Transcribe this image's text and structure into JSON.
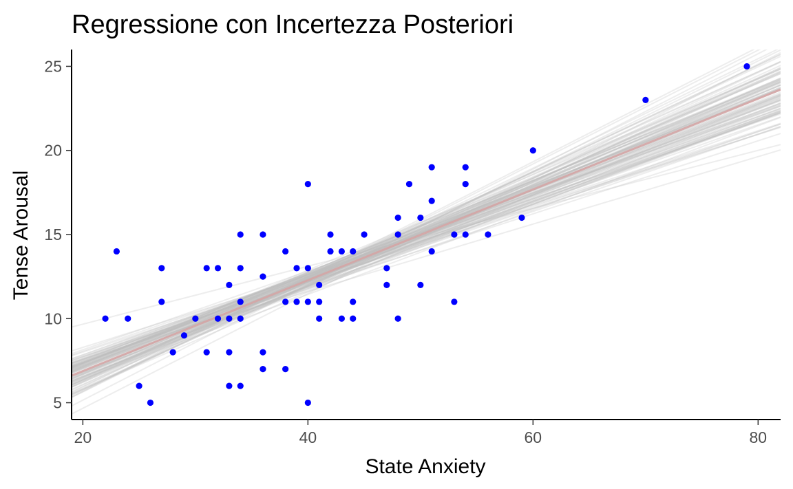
{
  "chart_data": {
    "type": "scatter",
    "title": "Regressione con Incertezza Posteriori",
    "xlabel": "State Anxiety",
    "ylabel": "Tense Arousal",
    "xlim": [
      19,
      82
    ],
    "ylim": [
      4,
      26
    ],
    "x_ticks": [
      20,
      40,
      60,
      80
    ],
    "y_ticks": [
      5,
      10,
      15,
      20,
      25
    ],
    "grid": false,
    "legend": "none",
    "colors": {
      "points": "#0000ff",
      "posterior_lines": "#bebebe",
      "mean_line": "#d4a5a5",
      "axis": "#000000",
      "tick_label": "#4d4d4d"
    },
    "mean_line": {
      "intercept": 1.48,
      "slope": 0.27
    },
    "posterior_draws": 100,
    "points": [
      {
        "x": 22,
        "y": 10
      },
      {
        "x": 23,
        "y": 14
      },
      {
        "x": 24,
        "y": 10
      },
      {
        "x": 25,
        "y": 6
      },
      {
        "x": 26,
        "y": 5
      },
      {
        "x": 27,
        "y": 13
      },
      {
        "x": 27,
        "y": 11
      },
      {
        "x": 28,
        "y": 8
      },
      {
        "x": 29,
        "y": 9
      },
      {
        "x": 30,
        "y": 10
      },
      {
        "x": 31,
        "y": 13
      },
      {
        "x": 31,
        "y": 8
      },
      {
        "x": 32,
        "y": 13
      },
      {
        "x": 32,
        "y": 10
      },
      {
        "x": 33,
        "y": 12
      },
      {
        "x": 33,
        "y": 10
      },
      {
        "x": 33,
        "y": 8
      },
      {
        "x": 33,
        "y": 6
      },
      {
        "x": 34,
        "y": 15
      },
      {
        "x": 34,
        "y": 13
      },
      {
        "x": 34,
        "y": 11
      },
      {
        "x": 34,
        "y": 10
      },
      {
        "x": 34,
        "y": 6
      },
      {
        "x": 36,
        "y": 15
      },
      {
        "x": 36,
        "y": 12.5
      },
      {
        "x": 36,
        "y": 8
      },
      {
        "x": 36,
        "y": 7
      },
      {
        "x": 38,
        "y": 14
      },
      {
        "x": 38,
        "y": 11
      },
      {
        "x": 38,
        "y": 7
      },
      {
        "x": 39,
        "y": 13
      },
      {
        "x": 39,
        "y": 11
      },
      {
        "x": 40,
        "y": 18
      },
      {
        "x": 40,
        "y": 13
      },
      {
        "x": 40,
        "y": 11
      },
      {
        "x": 40,
        "y": 5
      },
      {
        "x": 41,
        "y": 12
      },
      {
        "x": 41,
        "y": 11
      },
      {
        "x": 41,
        "y": 10
      },
      {
        "x": 42,
        "y": 15
      },
      {
        "x": 42,
        "y": 14
      },
      {
        "x": 43,
        "y": 14
      },
      {
        "x": 43,
        "y": 10
      },
      {
        "x": 44,
        "y": 14
      },
      {
        "x": 44,
        "y": 11
      },
      {
        "x": 44,
        "y": 10
      },
      {
        "x": 45,
        "y": 15
      },
      {
        "x": 47,
        "y": 13
      },
      {
        "x": 47,
        "y": 12
      },
      {
        "x": 48,
        "y": 16
      },
      {
        "x": 48,
        "y": 15
      },
      {
        "x": 48,
        "y": 10
      },
      {
        "x": 49,
        "y": 18
      },
      {
        "x": 50,
        "y": 16
      },
      {
        "x": 50,
        "y": 12
      },
      {
        "x": 51,
        "y": 19
      },
      {
        "x": 51,
        "y": 17
      },
      {
        "x": 51,
        "y": 14
      },
      {
        "x": 53,
        "y": 15
      },
      {
        "x": 53,
        "y": 11
      },
      {
        "x": 54,
        "y": 19
      },
      {
        "x": 54,
        "y": 18
      },
      {
        "x": 54,
        "y": 15
      },
      {
        "x": 56,
        "y": 15
      },
      {
        "x": 59,
        "y": 16
      },
      {
        "x": 60,
        "y": 20
      },
      {
        "x": 70,
        "y": 23
      },
      {
        "x": 79,
        "y": 25
      }
    ]
  }
}
